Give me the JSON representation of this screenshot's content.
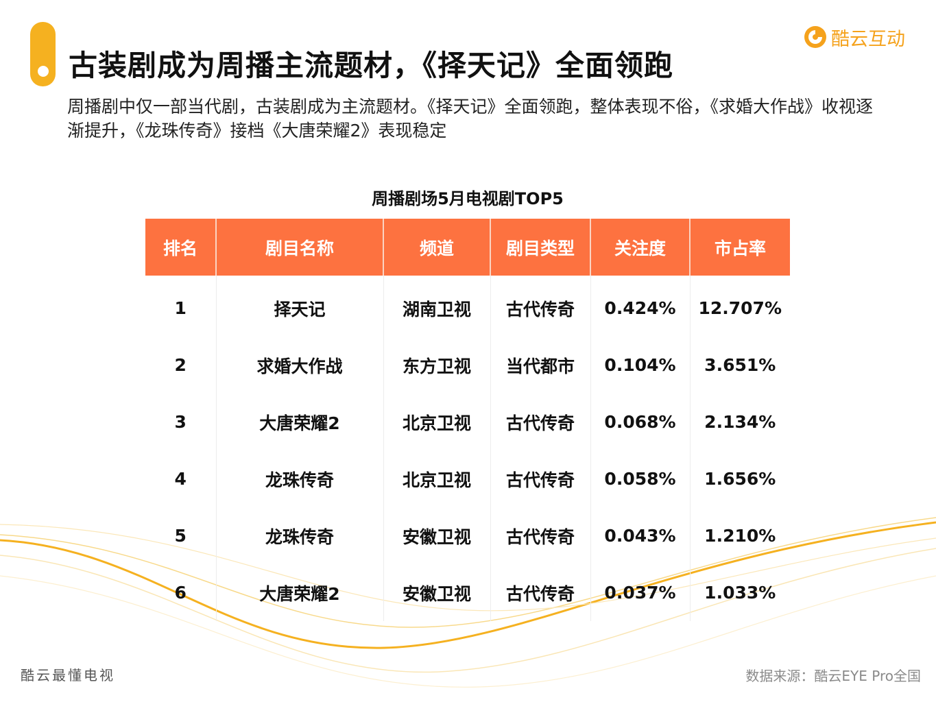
{
  "header": {
    "title": "古装剧成为周播主流题材，《择天记》全面领跑",
    "subtitle": "周播剧中仅一部当代剧，古装剧成为主流题材。《择天记》全面领跑，整体表现不俗，《求婚大作战》收视逐渐提升，《龙珠传奇》接档《大唐荣耀2》表现稳定"
  },
  "brand": {
    "logo_text": "酷云互动",
    "logo_icon": "kuyun-logo-icon",
    "accent_color": "#f5b120",
    "logo_color": "#f5a21c"
  },
  "table": {
    "title": "周播剧场5月电视剧TOP5",
    "header_color": "#fd7240",
    "columns": [
      "排名",
      "剧目名称",
      "频道",
      "剧目类型",
      "关注度",
      "市占率"
    ],
    "rows": [
      {
        "rank": "1",
        "name": "择天记",
        "channel": "湖南卫视",
        "genre": "古代传奇",
        "attention": "0.424%",
        "share": "12.707%"
      },
      {
        "rank": "2",
        "name": "求婚大作战",
        "channel": "东方卫视",
        "genre": "当代都市",
        "attention": "0.104%",
        "share": "3.651%"
      },
      {
        "rank": "3",
        "name": "大唐荣耀2",
        "channel": "北京卫视",
        "genre": "古代传奇",
        "attention": "0.068%",
        "share": "2.134%"
      },
      {
        "rank": "4",
        "name": "龙珠传奇",
        "channel": "北京卫视",
        "genre": "古代传奇",
        "attention": "0.058%",
        "share": "1.656%"
      },
      {
        "rank": "5",
        "name": "龙珠传奇",
        "channel": "安徽卫视",
        "genre": "古代传奇",
        "attention": "0.043%",
        "share": "1.210%"
      },
      {
        "rank": "6",
        "name": "大唐荣耀2",
        "channel": "安徽卫视",
        "genre": "古代传奇",
        "attention": "0.037%",
        "share": "1.033%"
      }
    ]
  },
  "footer": {
    "left_text": "酷云最懂电视",
    "source": "数据来源：酷云EYE Pro全国"
  }
}
